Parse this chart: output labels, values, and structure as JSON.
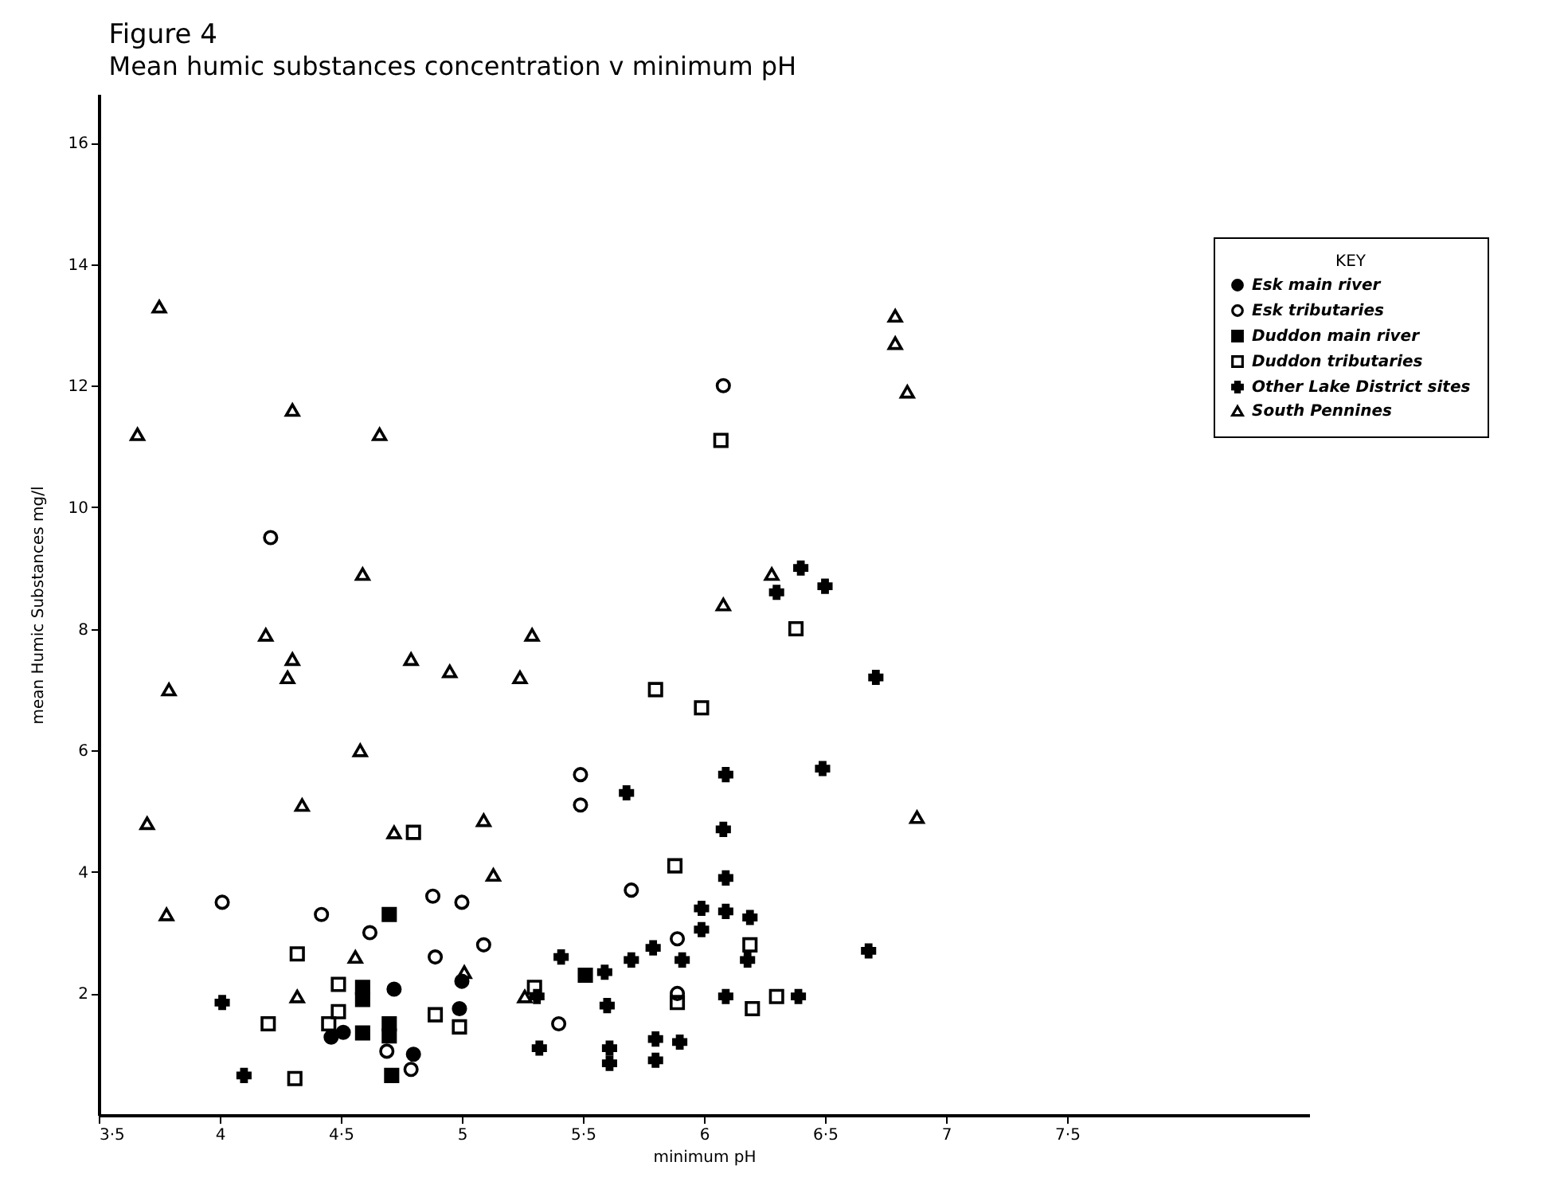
{
  "chart_data": {
    "type": "scatter",
    "title": "Figure 4",
    "subtitle": "Mean humic substances concentration v minimum pH",
    "xlabel": "minimum pH",
    "ylabel": "mean  Humic Substances  mg/l",
    "legend_title": "KEY",
    "legend": "top right",
    "xlim": [
      3.5,
      8.5
    ],
    "ylim": [
      0,
      16.8
    ],
    "xticks": [
      {
        "value": 3.5,
        "label": "3·5"
      },
      4,
      {
        "value": 4.5,
        "label": "4·5"
      },
      5,
      {
        "value": 5.5,
        "label": "5·5"
      },
      6,
      {
        "value": 6.5,
        "label": "6·5"
      },
      7,
      {
        "value": 7.5,
        "label": "7·5"
      }
    ],
    "yticks": [
      2,
      4,
      6,
      8,
      10,
      12,
      14,
      16
    ],
    "series": [
      {
        "name": "Esk main river",
        "color": "#000000",
        "marker": "circle",
        "x": [
          5.0,
          4.72,
          4.46,
          4.51,
          4.99,
          4.8
        ],
        "values": [
          2.2,
          2.07,
          1.28,
          1.36,
          1.75,
          1.0
        ]
      },
      {
        "name": "Esk tributaries",
        "color": "#000000",
        "marker": "circle",
        "x": [
          6.08,
          4.21,
          5.49,
          5.49,
          5.7,
          4.01,
          4.42,
          4.88,
          5.0,
          4.62,
          4.89,
          5.09,
          5.89,
          5.89,
          5.4,
          4.69,
          4.79
        ],
        "values": [
          12.0,
          9.5,
          5.6,
          5.1,
          3.7,
          3.5,
          3.3,
          3.6,
          3.5,
          3.0,
          2.6,
          2.8,
          2.9,
          2.0,
          1.5,
          1.05,
          0.75
        ]
      },
      {
        "name": "Duddon main river",
        "color": "#000000",
        "marker": "square",
        "x": [
          4.7,
          5.51,
          4.59,
          4.59,
          4.59,
          4.7,
          4.7,
          4.71
        ],
        "values": [
          3.3,
          2.3,
          2.1,
          1.9,
          1.35,
          1.5,
          1.3,
          0.65
        ]
      },
      {
        "name": "Duddon tributaries",
        "color": "#000000",
        "marker": "square",
        "x": [
          6.07,
          6.38,
          5.8,
          5.99,
          4.8,
          5.88,
          4.32,
          4.49,
          5.3,
          6.19,
          5.89,
          6.2,
          6.3,
          4.2,
          4.49,
          4.45,
          4.89,
          4.99,
          4.31
        ],
        "values": [
          11.1,
          8.0,
          7.0,
          6.7,
          4.65,
          4.1,
          2.65,
          2.15,
          2.1,
          2.8,
          1.85,
          1.75,
          1.95,
          1.5,
          1.7,
          1.5,
          1.65,
          1.45,
          0.6
        ]
      },
      {
        "name": "Other Lake District sites",
        "color": "#000000",
        "marker": "cross",
        "x": [
          6.4,
          6.5,
          6.3,
          6.71,
          6.49,
          6.09,
          5.68,
          6.08,
          6.09,
          5.99,
          6.09,
          6.19,
          5.99,
          5.79,
          5.7,
          5.91,
          6.18,
          5.41,
          6.68,
          5.59,
          5.31,
          5.6,
          6.09,
          6.39,
          5.32,
          5.61,
          5.61,
          5.8,
          5.9,
          5.8,
          4.01,
          4.1
        ],
        "values": [
          9.0,
          8.7,
          8.6,
          7.2,
          5.7,
          5.6,
          5.3,
          4.7,
          3.9,
          3.4,
          3.35,
          3.25,
          3.05,
          2.75,
          2.55,
          2.55,
          2.55,
          2.6,
          2.7,
          2.35,
          1.95,
          1.8,
          1.95,
          1.95,
          1.1,
          1.1,
          0.85,
          1.25,
          1.2,
          0.9,
          1.85,
          0.65
        ]
      },
      {
        "name": "South Pennines",
        "color": "#000000",
        "marker": "triangle",
        "x": [
          3.75,
          3.66,
          4.3,
          4.66,
          4.59,
          4.19,
          5.29,
          4.3,
          4.28,
          4.79,
          4.95,
          5.24,
          3.79,
          4.58,
          4.34,
          3.7,
          5.09,
          4.72,
          5.13,
          3.78,
          4.56,
          5.01,
          4.32,
          5.26,
          6.79,
          6.79,
          6.84,
          6.88,
          6.28,
          6.08
        ],
        "values": [
          13.3,
          11.2,
          11.6,
          11.2,
          8.9,
          7.9,
          7.9,
          7.5,
          7.2,
          7.5,
          7.3,
          7.2,
          7.0,
          6.0,
          5.1,
          4.8,
          4.85,
          4.65,
          3.95,
          3.3,
          2.6,
          2.35,
          1.95,
          1.95,
          13.15,
          12.7,
          11.9,
          4.9,
          8.9,
          8.4
        ]
      }
    ]
  }
}
